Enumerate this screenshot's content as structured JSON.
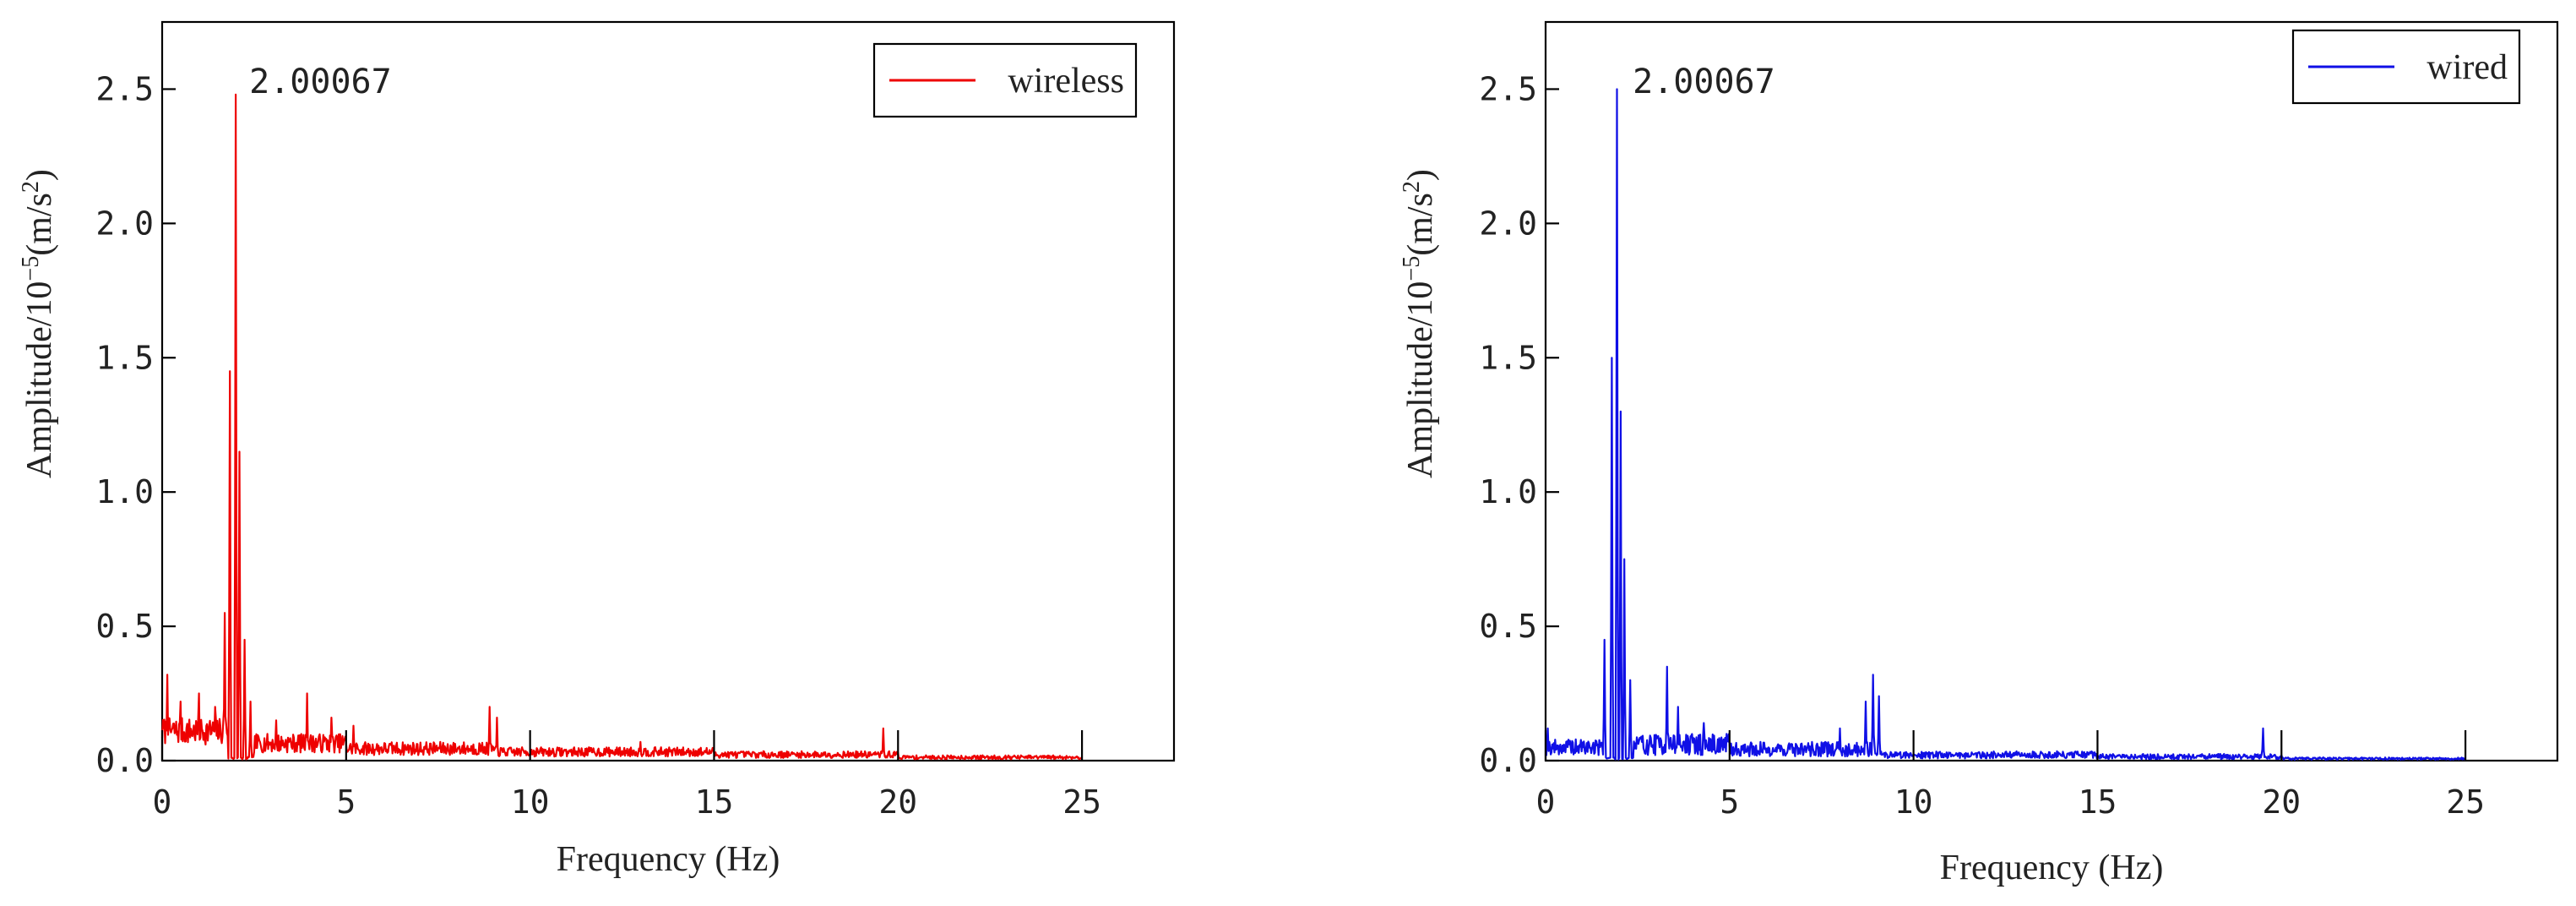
{
  "chart_data": [
    {
      "type": "line",
      "name": "wireless",
      "color": "#ee0000",
      "xlabel": "Frequency (Hz)",
      "ylabel": "Amplitude/10",
      "ylabel_exp": "−5",
      "ylabel_unit": "(m/s",
      "ylabel_unit_exp": "2",
      "ylabel_close": ")",
      "xlim": [
        0,
        27.5
      ],
      "ylim": [
        0,
        2.75
      ],
      "xticks": [
        "0",
        "5",
        "10",
        "15",
        "20",
        "25"
      ],
      "yticks": [
        "0.0",
        "0.5",
        "1.0",
        "1.5",
        "2.0",
        "2.5"
      ],
      "annotation": {
        "text": "2.00067",
        "x": 2.0,
        "y": 2.48
      },
      "legend": {
        "label": "wireless",
        "position": "top-right"
      },
      "peaks": [
        [
          0.15,
          0.32
        ],
        [
          0.5,
          0.22
        ],
        [
          1.0,
          0.25
        ],
        [
          1.45,
          0.2
        ],
        [
          1.7,
          0.55
        ],
        [
          1.85,
          1.45
        ],
        [
          2.0,
          2.48
        ],
        [
          2.1,
          1.15
        ],
        [
          2.25,
          0.45
        ],
        [
          2.4,
          0.22
        ],
        [
          3.1,
          0.15
        ],
        [
          3.95,
          0.25
        ],
        [
          4.6,
          0.16
        ],
        [
          5.2,
          0.13
        ],
        [
          8.9,
          0.2
        ],
        [
          9.1,
          0.16
        ],
        [
          13.0,
          0.07
        ],
        [
          19.6,
          0.12
        ]
      ],
      "noise": {
        "segments": [
          [
            0,
            1.8,
            0.06,
            0.16
          ],
          [
            2.5,
            5,
            0.03,
            0.1
          ],
          [
            5,
            9,
            0.02,
            0.07
          ],
          [
            9,
            15,
            0.015,
            0.05
          ],
          [
            15,
            20,
            0.01,
            0.035
          ],
          [
            20,
            25,
            0.005,
            0.02
          ]
        ],
        "seed": 7
      }
    },
    {
      "type": "line",
      "name": "wired",
      "color": "#1010e6",
      "xlabel": "Frequency (Hz)",
      "ylabel": "Amplitude/10",
      "ylabel_exp": "−5",
      "ylabel_unit": "(m/s",
      "ylabel_unit_exp": "2",
      "ylabel_close": ")",
      "xlim": [
        0,
        27.5
      ],
      "ylim": [
        0,
        2.75
      ],
      "xticks": [
        "0",
        "5",
        "10",
        "15",
        "20",
        "25"
      ],
      "yticks": [
        "0.0",
        "0.5",
        "1.0",
        "1.5",
        "2.0",
        "2.5"
      ],
      "annotation": {
        "text": "2.00067",
        "x": 2.0,
        "y": 2.48
      },
      "legend": {
        "label": "wired",
        "position": "top-right"
      },
      "peaks": [
        [
          0.05,
          0.12
        ],
        [
          1.6,
          0.45
        ],
        [
          1.8,
          1.5
        ],
        [
          1.95,
          2.5
        ],
        [
          2.05,
          1.3
        ],
        [
          2.15,
          0.75
        ],
        [
          2.3,
          0.3
        ],
        [
          3.3,
          0.35
        ],
        [
          3.6,
          0.2
        ],
        [
          4.3,
          0.14
        ],
        [
          8.0,
          0.12
        ],
        [
          8.7,
          0.22
        ],
        [
          8.9,
          0.32
        ],
        [
          9.05,
          0.24
        ],
        [
          19.5,
          0.12
        ]
      ],
      "noise": {
        "segments": [
          [
            0,
            1.6,
            0.02,
            0.08
          ],
          [
            2.4,
            5,
            0.02,
            0.1
          ],
          [
            5,
            9,
            0.015,
            0.07
          ],
          [
            9,
            15,
            0.008,
            0.035
          ],
          [
            15,
            20,
            0.005,
            0.025
          ],
          [
            20,
            25,
            0.003,
            0.012
          ]
        ],
        "seed": 19
      }
    }
  ]
}
